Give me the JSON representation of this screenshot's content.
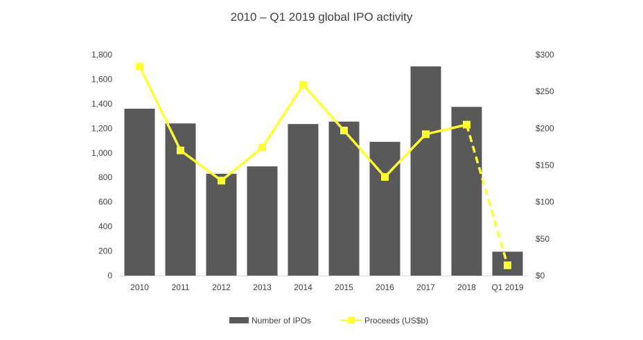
{
  "chart_data": {
    "type": "bar+line",
    "title": "2010 – Q1 2019 global IPO activity",
    "categories": [
      "2010",
      "2011",
      "2012",
      "2013",
      "2014",
      "2015",
      "2016",
      "2017",
      "2018",
      "Q1 2019"
    ],
    "series": [
      {
        "name": "Number of IPOs",
        "type": "bar",
        "axis": "left",
        "color": "#595959",
        "values": [
          1360,
          1240,
          830,
          890,
          1235,
          1255,
          1090,
          1705,
          1375,
          195
        ]
      },
      {
        "name": "Proceeds (US$b)",
        "type": "line",
        "axis": "right",
        "color": "#FFFF33",
        "marker": "square",
        "dashed_last_segment": true,
        "values": [
          284,
          170,
          129,
          174,
          259,
          197,
          134,
          192,
          205,
          14
        ]
      }
    ],
    "left_axis": {
      "ylim": [
        0,
        1800
      ],
      "ticks": [
        "0",
        "200",
        "400",
        "600",
        "800",
        "1,000",
        "1,200",
        "1,400",
        "1,600",
        "1,800"
      ]
    },
    "right_axis": {
      "ylim": [
        0,
        300
      ],
      "ticks": [
        "$0",
        "$50",
        "$100",
        "$150",
        "$200",
        "$250",
        "$300"
      ]
    },
    "grid": false,
    "legend": "bottom"
  }
}
